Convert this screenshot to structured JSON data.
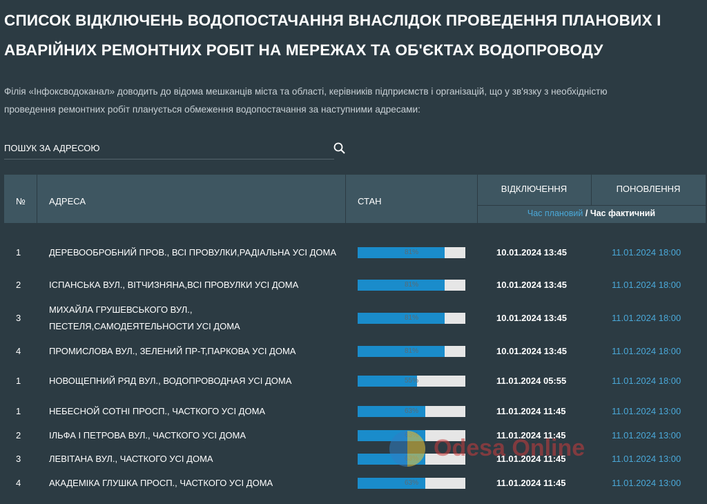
{
  "header": {
    "title_line1": "СПИСОК ВІДКЛЮЧЕНЬ ВОДОПОСТАЧАННЯ ВНАСЛІДОК ПРОВЕДЕННЯ ПЛАНОВИХ І",
    "title_line2": "АВАРІЙНИХ РЕМОНТНИХ РОБІТ НА МЕРЕЖАХ ТА ОБ'ЄКТАХ ВОДОПРОВОДУ",
    "intro_line1": "Філія «Інфоксводоканал» доводить до відома мешканців міста та області, керівників підприємств і організацій, що у зв'язку з необхідністю",
    "intro_line2": "проведення ремонтних робіт планується обмеження водопостачання за наступними адресами:"
  },
  "search": {
    "placeholder": "ПОШУК ЗА АДРЕСОЮ"
  },
  "table": {
    "columns": {
      "number": "№",
      "address": "АДРЕСА",
      "status": "СТАН",
      "off": "ВІДКЛЮЧЕННЯ",
      "update": "ПОНОВЛЕННЯ"
    },
    "legend": {
      "planned": "Час плановий",
      "separator": "/",
      "actual": "Час фактичний"
    },
    "rows": [
      {
        "number": "1",
        "address": "ДЕРЕВООБРОБНИЙ ПРОВ., ВСІ ПРОВУЛКИ,РАДІАЛЬНА УСІ ДОМА",
        "status": 81,
        "status_label": "81%",
        "off": "10.01.2024 13:45",
        "update": "11.01.2024 18:00"
      },
      {
        "number": "2",
        "address": "ІСПАНСЬКА ВУЛ., ВІТЧИЗНЯНА,ВСІ ПРОВУЛКИ УСІ ДОМА",
        "status": 81,
        "status_label": "81%",
        "off": "10.01.2024 13:45",
        "update": "11.01.2024 18:00"
      },
      {
        "number": "3",
        "address": "МИХАЙЛА ГРУШЕВСЬКОГО ВУЛ., ПЕСТЕЛЯ,САМОДЕЯТЕЛЬНОСТИ УСІ ДОМА",
        "status": 81,
        "status_label": "81%",
        "off": "10.01.2024 13:45",
        "update": "11.01.2024 18:00"
      },
      {
        "number": "4",
        "address": "ПРОМИСЛОВА ВУЛ., ЗЕЛЕНИЙ ПР-Т,ПАРКОВА УСІ ДОМА",
        "status": 81,
        "status_label": "81%",
        "off": "10.01.2024 13:45",
        "update": "11.01.2024 18:00"
      },
      {
        "number": "1",
        "address": "НОВОЩЕПНИЙ РЯД ВУЛ., ВОДОПРОВОДНАЯ УСІ ДОМА",
        "status": 55,
        "status_label": "55%",
        "off": "11.01.2024 05:55",
        "update": "11.01.2024 18:00"
      },
      {
        "number": "1",
        "address": "НЕБЕСНОЙ СОТНІ ПРОСП., ЧАСТКОГО УСІ ДОМА",
        "status": 63,
        "status_label": "63%",
        "off": "11.01.2024 11:45",
        "update": "11.01.2024 13:00"
      },
      {
        "number": "2",
        "address": "ІЛЬФА І ПЕТРОВА ВУЛ., ЧАСТКОГО УСІ ДОМА",
        "status": 63,
        "status_label": "63%",
        "off": "11.01.2024 11:45",
        "update": "11.01.2024 13:00"
      },
      {
        "number": "3",
        "address": "ЛЕВІТАНА ВУЛ., ЧАСТКОГО УСІ ДОМА",
        "status": 63,
        "status_label": "63%",
        "off": "11.01.2024 11:45",
        "update": "11.01.2024 13:00"
      },
      {
        "number": "4",
        "address": "АКАДЕМІКА ГЛУШКА ПРОСП., ЧАСТКОГО УСІ ДОМА",
        "status": 63,
        "status_label": "63%",
        "off": "11.01.2024 11:45",
        "update": "11.01.2024 13:00"
      }
    ]
  },
  "watermark": "Odesa Online"
}
